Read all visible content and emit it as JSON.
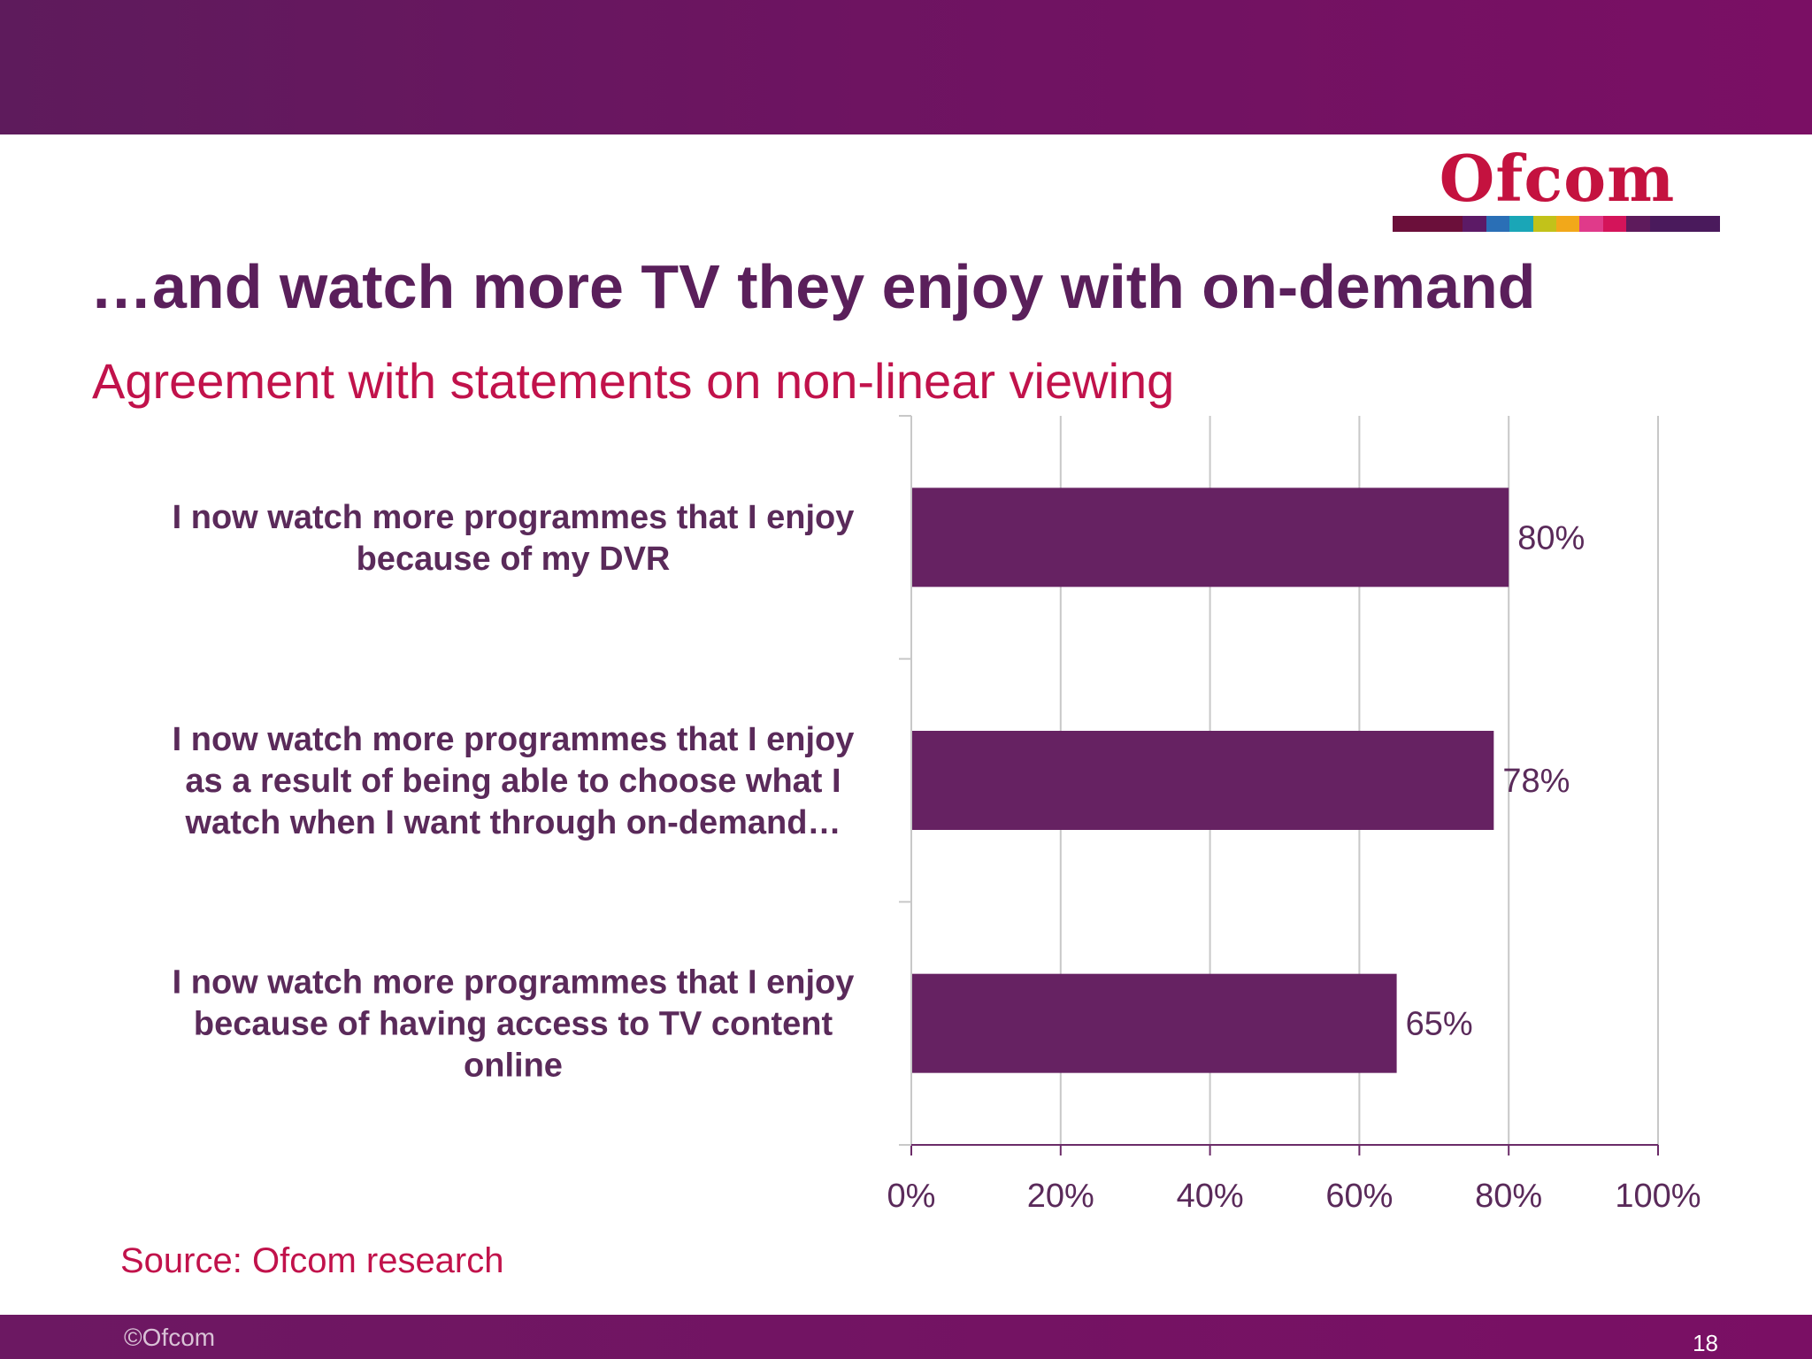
{
  "slide": {
    "title": "…and watch more TV they enjoy with on-demand",
    "subtitle": "Agreement with statements on non-linear viewing",
    "source": "Source: Ofcom research",
    "footer_copyright": "©Ofcom",
    "page_number": "18"
  },
  "logo": {
    "text": "Ofcom",
    "stripe_colors": [
      "#6b0f3a",
      "#5c1a66",
      "#2a6fb6",
      "#1aa6b7",
      "#c2c21a",
      "#f2a81a",
      "#e03a8a",
      "#d4145a",
      "#5e1b5c",
      "#4a1a5c"
    ]
  },
  "colors": {
    "bar": "#662262",
    "gridline": "#c8c8c8",
    "axis": "#6b2c68"
  },
  "chart_data": {
    "type": "bar",
    "orientation": "horizontal",
    "categories": [
      [
        "I now watch more programmes that I enjoy",
        "because of my DVR"
      ],
      [
        "I now watch more programmes that I enjoy",
        "as a result of being able to choose what I",
        "watch when I want through on-demand…"
      ],
      [
        "I now watch more programmes that I enjoy",
        "because of having access to TV content",
        "online"
      ]
    ],
    "values": [
      80,
      78,
      65
    ],
    "data_labels": [
      "80%",
      "78%",
      "65%"
    ],
    "x_ticks": [
      "0%",
      "20%",
      "40%",
      "60%",
      "80%",
      "100%"
    ],
    "xlim": [
      0,
      100
    ],
    "grid": true,
    "legend": "none"
  }
}
